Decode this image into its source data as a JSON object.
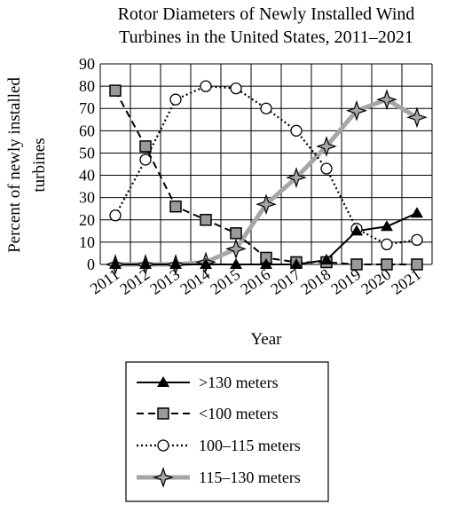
{
  "chart_data": {
    "type": "line",
    "title_lines": [
      "Rotor Diameters of Newly Installed Wind",
      "Turbines in the United States, 2011–2021"
    ],
    "ylabel_lines": [
      "Percent of newly installed",
      "turbines"
    ],
    "xlabel": "Year",
    "x": [
      "2011",
      "2012",
      "2013",
      "2014",
      "2015",
      "2016",
      "2017",
      "2018",
      "2019",
      "2020",
      "2021"
    ],
    "y_ticks": [
      0,
      10,
      20,
      30,
      40,
      50,
      60,
      70,
      80,
      90
    ],
    "ylim": [
      0,
      90
    ],
    "grid": true,
    "legend_position": "bottom",
    "series": [
      {
        "name": ">130 meters",
        "marker": "triangle",
        "line_style": "solid",
        "color": "#000000",
        "values": [
          0,
          0,
          0,
          0,
          0,
          0,
          0,
          2,
          15,
          17,
          23
        ]
      },
      {
        "name": "<100 meters",
        "marker": "square",
        "line_style": "dashed",
        "color": "#000000",
        "values": [
          78,
          53,
          26,
          20,
          14,
          3,
          1,
          1,
          0,
          0,
          0
        ]
      },
      {
        "name": "100–115 meters",
        "marker": "circle",
        "line_style": "dotted",
        "color": "#000000",
        "values": [
          22,
          47,
          74,
          80,
          79,
          70,
          60,
          43,
          16,
          9,
          11
        ]
      },
      {
        "name": "115–130 meters",
        "marker": "star",
        "line_style": "solid-thick",
        "color": "#a6a6a6",
        "values": [
          0,
          0,
          0,
          1,
          7,
          27,
          39,
          53,
          69,
          74,
          66
        ]
      }
    ]
  }
}
